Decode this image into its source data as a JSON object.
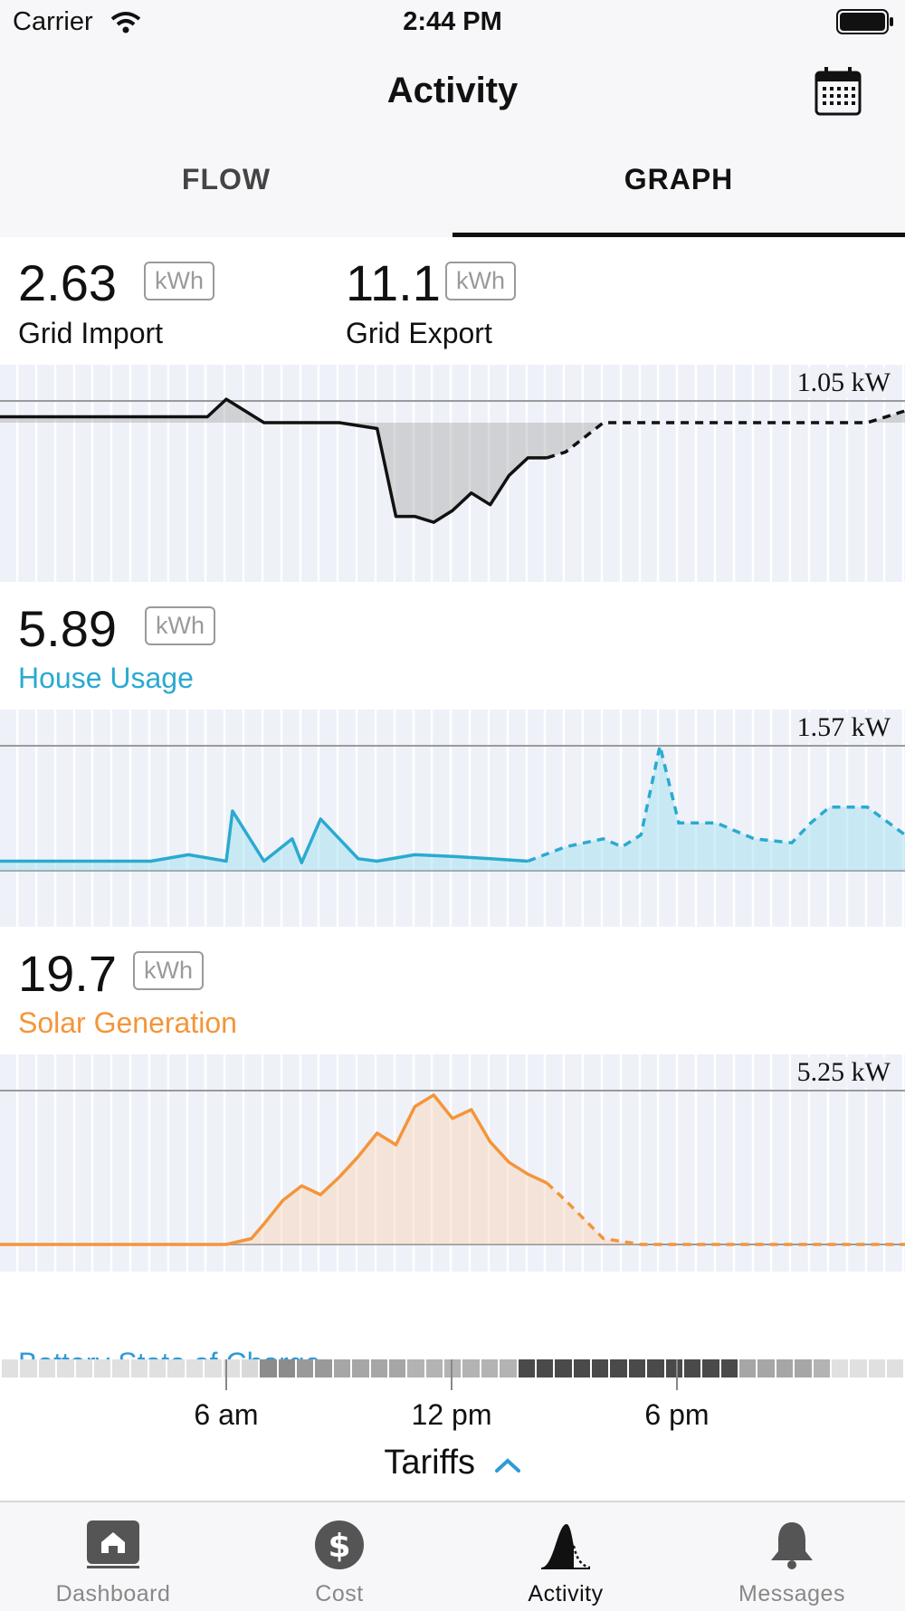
{
  "status_bar": {
    "carrier": "Carrier",
    "time": "2:44 PM"
  },
  "nav": {
    "title": "Activity",
    "calendar_icon": "calendar-icon"
  },
  "tabs": [
    {
      "label": "FLOW",
      "selected": false
    },
    {
      "label": "GRAPH",
      "selected": true
    }
  ],
  "sections": {
    "grid": {
      "import_value": "2.63",
      "import_unit": "kWh",
      "import_label": "Grid Import",
      "export_value": "11.1",
      "export_unit": "kWh",
      "export_label": "Grid Export",
      "scale": "1.05 kW"
    },
    "house": {
      "value": "5.89",
      "unit": "kWh",
      "label": "House Usage",
      "scale": "1.57 kW",
      "color": "#2aaad0"
    },
    "solar": {
      "value": "19.7",
      "unit": "kWh",
      "label": "Solar Generation",
      "scale": "5.25 kW",
      "color": "#f4953a"
    },
    "battery": {
      "label": "Battery State of Charge"
    }
  },
  "chart_data": [
    {
      "type": "area",
      "name": "grid",
      "x": [
        "0:00",
        "2:00",
        "4:00",
        "5:30",
        "6:00",
        "7:00",
        "9:00",
        "10:00",
        "10:30",
        "11:00",
        "11:30",
        "12:00",
        "12:30",
        "13:00",
        "13:30",
        "14:00",
        "14:30",
        "15:00",
        "16:00",
        "18:00",
        "20:00",
        "22:00",
        "23:00",
        "24:00"
      ],
      "values": [
        0.05,
        0.05,
        0.05,
        0.05,
        0.2,
        0.0,
        0.0,
        -0.05,
        -0.8,
        -0.8,
        -0.85,
        -0.75,
        -0.6,
        -0.7,
        -0.45,
        -0.3,
        -0.3,
        -0.25,
        0.0,
        0.0,
        0.0,
        0.0,
        0.0,
        0.1
      ],
      "forecast_from": "14:30",
      "ylim": [
        -1.05,
        1.05
      ]
    },
    {
      "type": "area",
      "name": "house",
      "x": [
        "0:00",
        "2:00",
        "4:00",
        "5:00",
        "6:00",
        "6:10",
        "7:00",
        "7:45",
        "8:00",
        "8:30",
        "9:30",
        "10:00",
        "11:00",
        "12:00",
        "13:00",
        "14:00",
        "15:00",
        "16:00",
        "16:30",
        "17:00",
        "17:30",
        "18:00",
        "19:00",
        "20:00",
        "21:00",
        "21:30",
        "22:00",
        "23:00",
        "24:00"
      ],
      "values": [
        0.12,
        0.12,
        0.12,
        0.2,
        0.12,
        0.75,
        0.12,
        0.4,
        0.1,
        0.65,
        0.15,
        0.12,
        0.2,
        0.18,
        0.15,
        0.12,
        0.3,
        0.4,
        0.3,
        0.45,
        1.57,
        0.6,
        0.6,
        0.4,
        0.35,
        0.6,
        0.8,
        0.8,
        0.45
      ],
      "forecast_from": "14:30",
      "ylim": [
        0,
        1.57
      ]
    },
    {
      "type": "area",
      "name": "solar",
      "x": [
        "0:00",
        "6:00",
        "6:40",
        "7:00",
        "7:30",
        "8:00",
        "8:30",
        "9:00",
        "9:30",
        "10:00",
        "10:30",
        "11:00",
        "11:30",
        "12:00",
        "12:30",
        "13:00",
        "13:30",
        "14:00",
        "14:30",
        "15:00",
        "16:00",
        "17:00",
        "24:00"
      ],
      "values": [
        0,
        0,
        0.2,
        0.7,
        1.5,
        2.0,
        1.7,
        2.3,
        3.0,
        3.8,
        3.4,
        4.7,
        5.1,
        4.3,
        4.6,
        3.5,
        2.8,
        2.4,
        2.1,
        1.5,
        0.2,
        0.0,
        0.0
      ],
      "forecast_from": "14:30",
      "ylim": [
        0,
        5.25
      ]
    }
  ],
  "tariff_strip": [
    "#e0e0e0",
    "#e0e0e0",
    "#e0e0e0",
    "#e0e0e0",
    "#e0e0e0",
    "#e0e0e0",
    "#e0e0e0",
    "#e0e0e0",
    "#e0e0e0",
    "#e0e0e0",
    "#e0e0e0",
    "#e0e0e0",
    "#e0e0e0",
    "#d8d8d8",
    "#8c8c8c",
    "#8c8c8c",
    "#999999",
    "#999999",
    "#a6a6a6",
    "#a6a6a6",
    "#a6a6a6",
    "#a6a6a6",
    "#b3b3b3",
    "#b3b3b3",
    "#b3b3b3",
    "#b3b3b3",
    "#b3b3b3",
    "#b3b3b3",
    "#4a4a4a",
    "#4a4a4a",
    "#4a4a4a",
    "#4a4a4a",
    "#4a4a4a",
    "#4a4a4a",
    "#4a4a4a",
    "#4a4a4a",
    "#4a4a4a",
    "#4a4a4a",
    "#4a4a4a",
    "#4a4a4a",
    "#a6a6a6",
    "#a6a6a6",
    "#a6a6a6",
    "#a6a6a6",
    "#b3b3b3",
    "#e0e0e0",
    "#e0e0e0",
    "#e0e0e0",
    "#e0e0e0"
  ],
  "axis_ticks": [
    "6 am",
    "12 pm",
    "6 pm"
  ],
  "tariffs": {
    "label": "Tariffs",
    "icon": "chevron-up-icon"
  },
  "tab_bar": [
    {
      "label": "Dashboard",
      "icon": "house-icon",
      "selected": false
    },
    {
      "label": "Cost",
      "icon": "dollar-icon",
      "selected": false
    },
    {
      "label": "Activity",
      "icon": "activity-icon",
      "selected": true
    },
    {
      "label": "Messages",
      "icon": "bell-icon",
      "selected": false
    }
  ]
}
